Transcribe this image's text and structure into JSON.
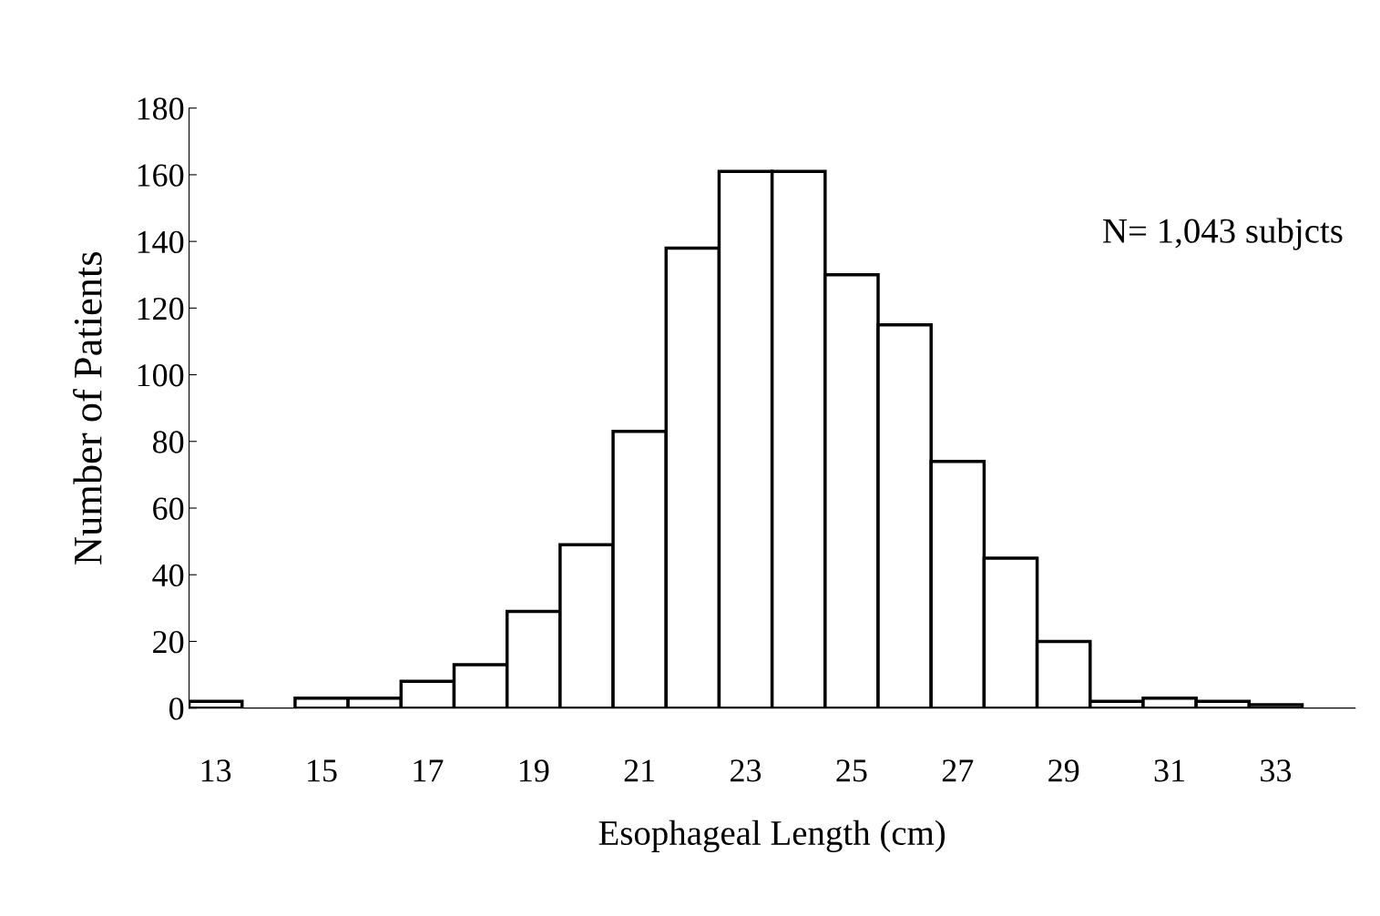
{
  "chart_data": {
    "type": "bar",
    "xlabel": "Esophageal Length (cm)",
    "ylabel": "Number of Patients",
    "categories": [
      "13",
      null,
      "15",
      null,
      "17",
      null,
      "19",
      null,
      "21",
      null,
      "23",
      null,
      "25",
      null,
      "27",
      null,
      "29",
      null,
      "31",
      null,
      "33"
    ],
    "values": [
      2,
      null,
      3,
      3,
      8,
      13,
      29,
      49,
      83,
      138,
      161,
      161,
      130,
      115,
      74,
      45,
      20,
      2,
      3,
      2,
      1
    ],
    "color": "#ffffff",
    "ylim": [
      0,
      180
    ],
    "yticks": [
      0,
      20,
      40,
      60,
      80,
      100,
      120,
      140,
      160,
      180
    ],
    "grid": false,
    "annotations": [
      "N= 1,043 subjcts"
    ]
  }
}
